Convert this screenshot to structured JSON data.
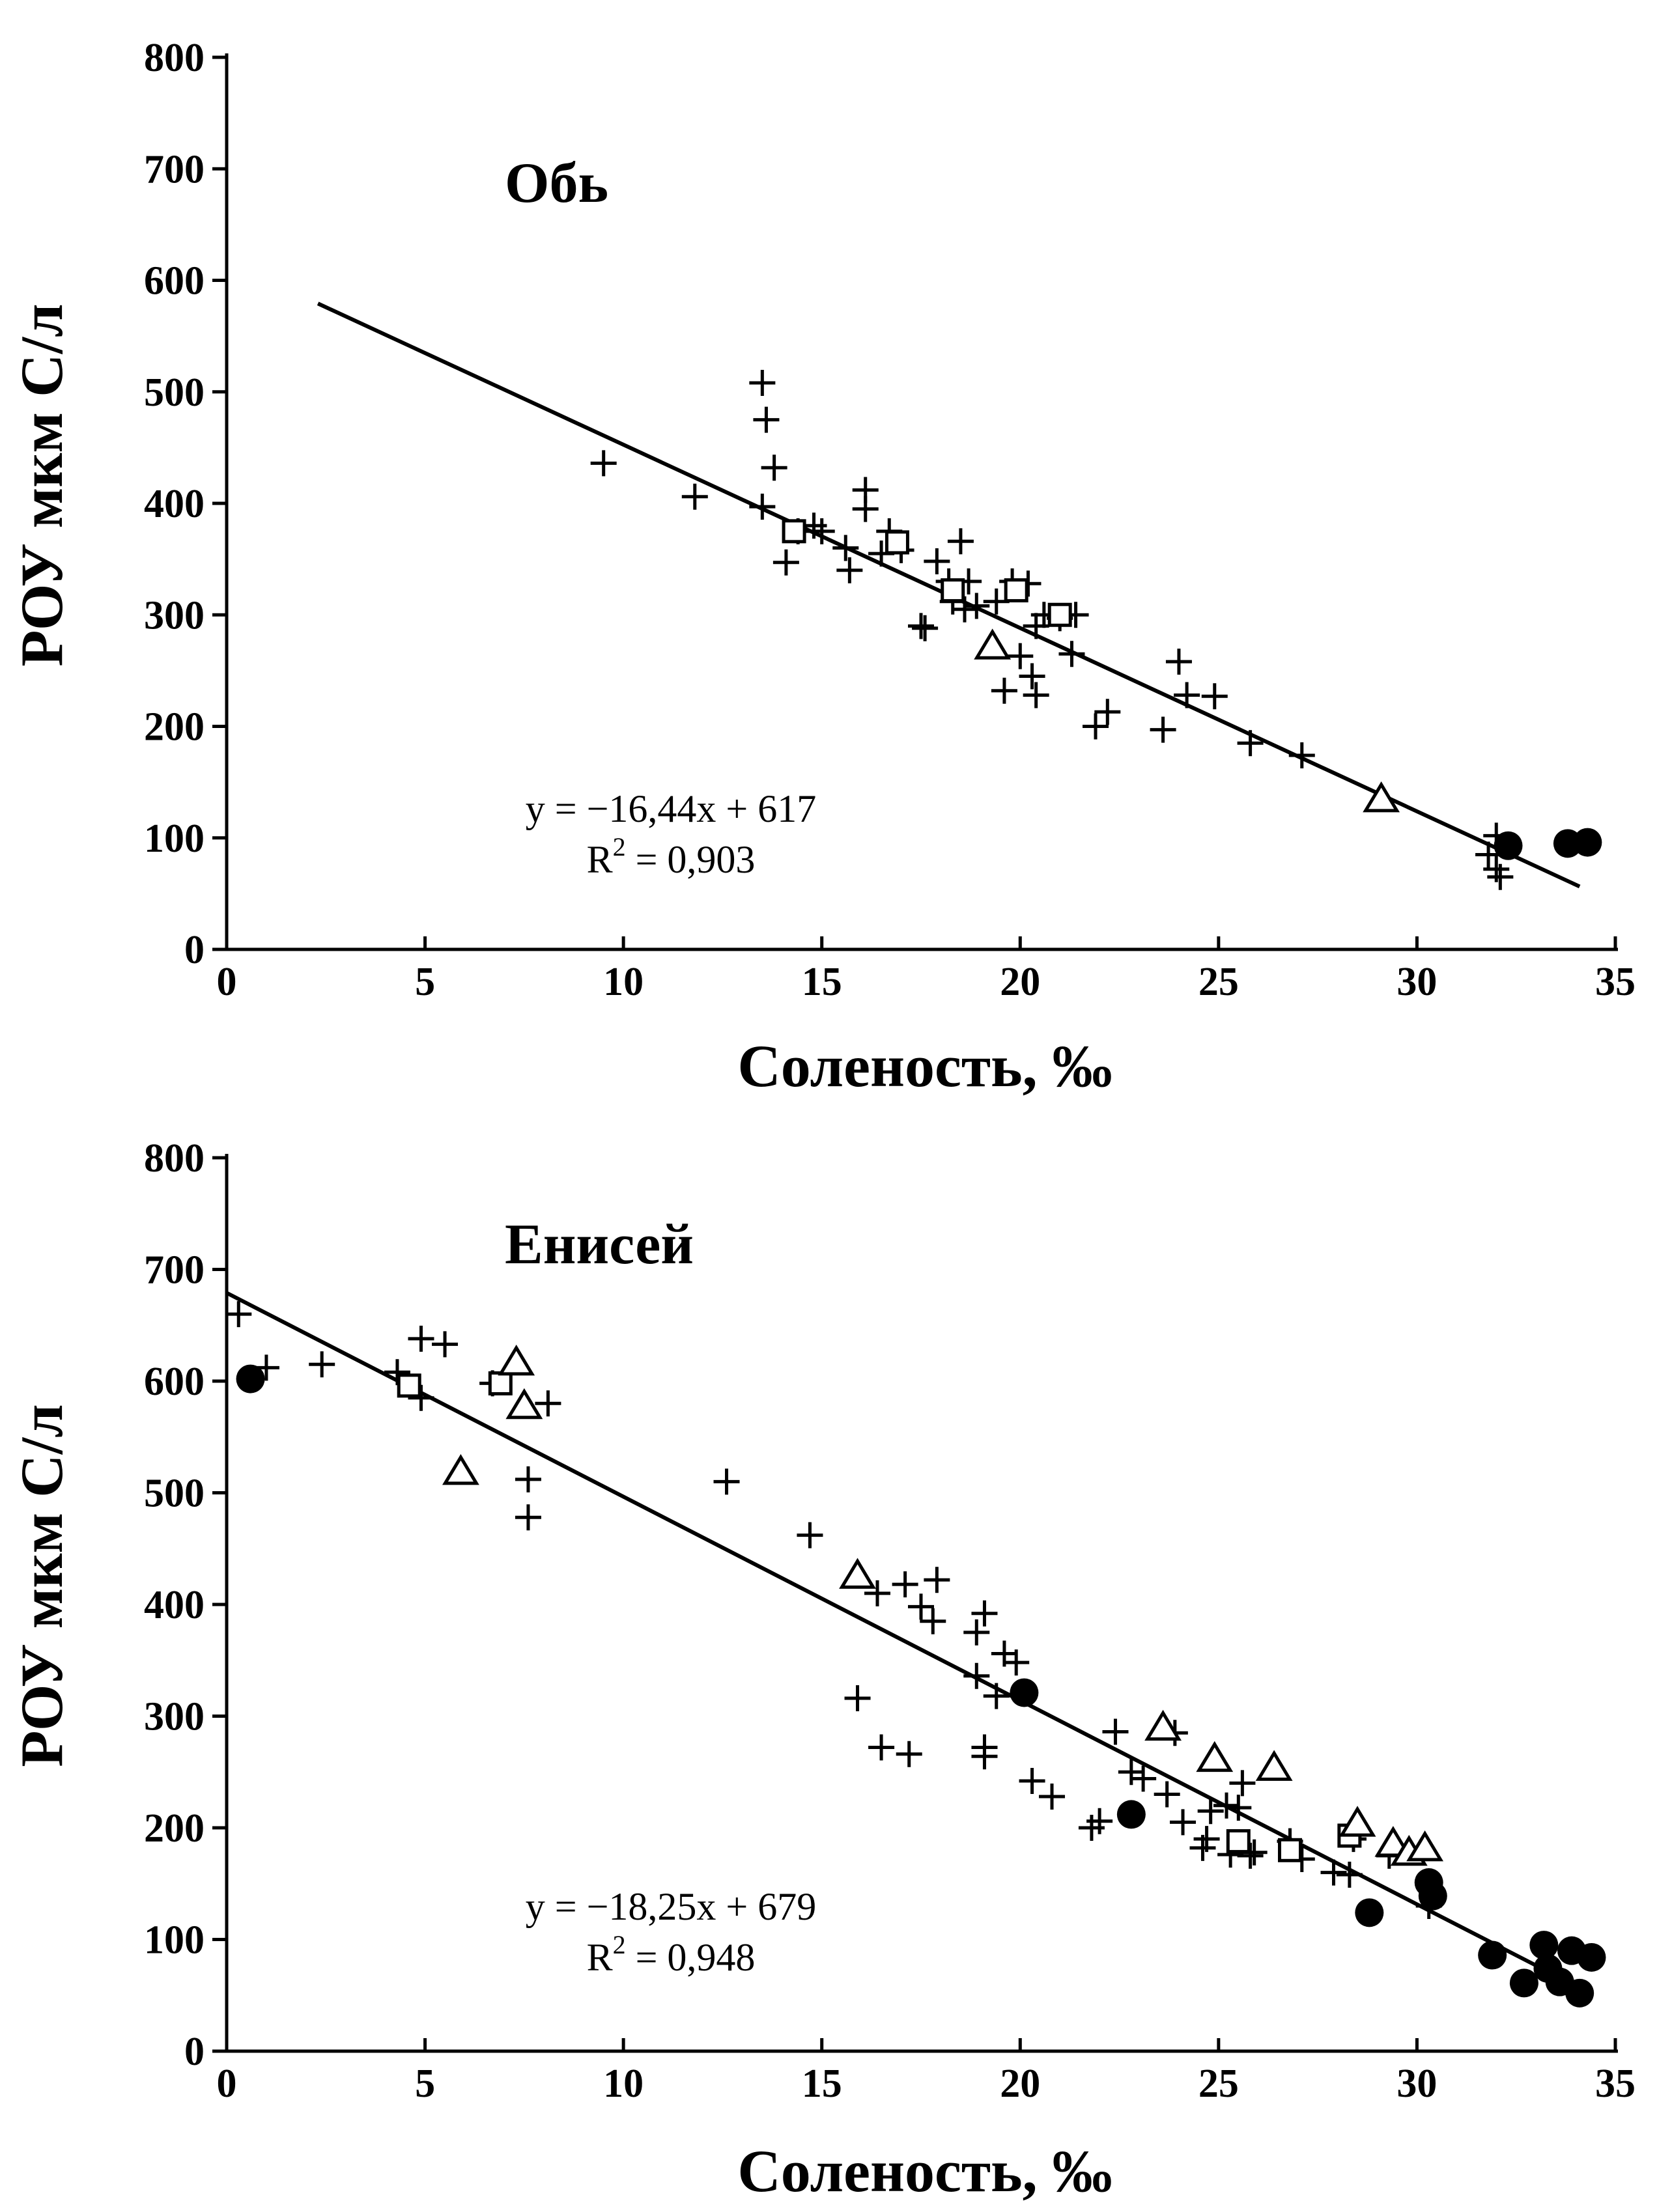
{
  "colors": {
    "ink": "#000000",
    "background": "#ffffff"
  },
  "chart_data": [
    {
      "type": "scatter",
      "title": "Обь",
      "xlabel": "Соленость, ‰",
      "ylabel": "РОУ мкм С/л",
      "xlim": [
        0,
        35
      ],
      "ylim": [
        0,
        800
      ],
      "xticks": [
        0,
        5,
        10,
        15,
        20,
        25,
        30,
        35
      ],
      "yticks": [
        0,
        100,
        200,
        300,
        400,
        500,
        600,
        700,
        800
      ],
      "grid": false,
      "equation": {
        "line1": "y = −16,44x + 617",
        "line2_prefix": "R",
        "line2_sup": "2",
        "line2_suffix": " = 0,903"
      },
      "trendline": {
        "slope": -16.44,
        "intercept": 617,
        "x_range": [
          2.3,
          34.1
        ]
      },
      "series": [
        {
          "marker": "plus",
          "points": [
            [
              9.5,
              436
            ],
            [
              11.8,
              406
            ],
            [
              13.5,
              508
            ],
            [
              13.6,
              475
            ],
            [
              13.8,
              432
            ],
            [
              13.5,
              397
            ],
            [
              14.1,
              347
            ],
            [
              14.4,
              375
            ],
            [
              14.8,
              380
            ],
            [
              15.0,
              375
            ],
            [
              15.6,
              360
            ],
            [
              15.7,
              340
            ],
            [
              16.1,
              412
            ],
            [
              16.1,
              395
            ],
            [
              16.5,
              355
            ],
            [
              16.7,
              375
            ],
            [
              17.0,
              358
            ],
            [
              17.5,
              290
            ],
            [
              17.6,
              288
            ],
            [
              17.9,
              348
            ],
            [
              18.2,
              330
            ],
            [
              18.3,
              312
            ],
            [
              18.5,
              366
            ],
            [
              18.6,
              305
            ],
            [
              18.7,
              330
            ],
            [
              18.9,
              308
            ],
            [
              19.4,
              312
            ],
            [
              19.6,
              232
            ],
            [
              19.8,
              330
            ],
            [
              20.0,
              263
            ],
            [
              20.2,
              328
            ],
            [
              20.3,
              245
            ],
            [
              20.4,
              228
            ],
            [
              20.4,
              290
            ],
            [
              20.6,
              300
            ],
            [
              21.0,
              297
            ],
            [
              21.3,
              265
            ],
            [
              21.4,
              300
            ],
            [
              21.9,
              200
            ],
            [
              22.2,
              213
            ],
            [
              23.6,
              197
            ],
            [
              24.0,
              258
            ],
            [
              24.2,
              228
            ],
            [
              24.9,
              227
            ],
            [
              25.8,
              185
            ],
            [
              27.1,
              174
            ],
            [
              31.8,
              85
            ],
            [
              32.0,
              102
            ],
            [
              32.0,
              72
            ],
            [
              32.1,
              65
            ]
          ]
        },
        {
          "marker": "square",
          "points": [
            [
              14.3,
              375
            ],
            [
              16.9,
              365
            ],
            [
              18.3,
              322
            ],
            [
              19.9,
              322
            ],
            [
              21.0,
              300
            ]
          ]
        },
        {
          "marker": "triangle",
          "points": [
            [
              19.3,
              272
            ],
            [
              29.1,
              135
            ]
          ]
        },
        {
          "marker": "circle",
          "points": [
            [
              32.3,
              93
            ],
            [
              33.8,
              95
            ],
            [
              34.3,
              96
            ]
          ]
        }
      ]
    },
    {
      "type": "scatter",
      "title": "Енисей",
      "xlabel": "Соленость, ‰",
      "ylabel": "РОУ мкм С/л",
      "xlim": [
        0,
        35
      ],
      "ylim": [
        0,
        800
      ],
      "xticks": [
        0,
        5,
        10,
        15,
        20,
        25,
        30,
        35
      ],
      "yticks": [
        0,
        100,
        200,
        300,
        400,
        500,
        600,
        700,
        800
      ],
      "grid": false,
      "equation": {
        "line1": "y = −18,25x + 679",
        "line2_prefix": "R",
        "line2_sup": "2",
        "line2_suffix": " = 0,948"
      },
      "trendline": {
        "slope": -18.25,
        "intercept": 679,
        "x_range": [
          0,
          33.3
        ]
      },
      "series": [
        {
          "marker": "plus",
          "points": [
            [
              0.3,
              660
            ],
            [
              1.0,
              612
            ],
            [
              2.4,
              615
            ],
            [
              4.3,
              608
            ],
            [
              4.9,
              638
            ],
            [
              4.9,
              585
            ],
            [
              5.5,
              633
            ],
            [
              6.7,
              598
            ],
            [
              7.6,
              512
            ],
            [
              7.6,
              478
            ],
            [
              8.1,
              580
            ],
            [
              12.6,
              510
            ],
            [
              14.7,
              462
            ],
            [
              15.9,
              316
            ],
            [
              16.4,
              410
            ],
            [
              16.5,
              272
            ],
            [
              17.1,
              418
            ],
            [
              17.2,
              266
            ],
            [
              17.5,
              398
            ],
            [
              17.8,
              385
            ],
            [
              17.9,
              422
            ],
            [
              18.9,
              375
            ],
            [
              18.9,
              336
            ],
            [
              19.1,
              392
            ],
            [
              19.1,
              272
            ],
            [
              19.1,
              264
            ],
            [
              19.4,
              318
            ],
            [
              19.6,
              356
            ],
            [
              19.9,
              348
            ],
            [
              20.3,
              242
            ],
            [
              20.8,
              228
            ],
            [
              21.8,
              200
            ],
            [
              22.0,
              206
            ],
            [
              22.4,
              286
            ],
            [
              22.8,
              250
            ],
            [
              23.1,
              244
            ],
            [
              23.7,
              230
            ],
            [
              23.9,
              285
            ],
            [
              24.1,
              205
            ],
            [
              24.6,
              182
            ],
            [
              24.7,
              190
            ],
            [
              24.8,
              215
            ],
            [
              25.2,
              220
            ],
            [
              25.3,
              176
            ],
            [
              25.5,
              218
            ],
            [
              25.6,
              240
            ],
            [
              25.8,
              175
            ],
            [
              25.9,
              178
            ],
            [
              26.8,
              188
            ],
            [
              27.1,
              172
            ],
            [
              27.9,
              160
            ],
            [
              28.3,
              158
            ],
            [
              28.4,
              190
            ],
            [
              29.3,
              175
            ],
            [
              30.1,
              178
            ],
            [
              30.3,
              130
            ]
          ]
        },
        {
          "marker": "square",
          "points": [
            [
              4.6,
              596
            ],
            [
              6.9,
              598
            ],
            [
              25.5,
              188
            ],
            [
              26.8,
              180
            ],
            [
              28.3,
              193
            ]
          ]
        },
        {
          "marker": "triangle",
          "points": [
            [
              5.9,
              519
            ],
            [
              7.3,
              617
            ],
            [
              7.5,
              578
            ],
            [
              15.9,
              426
            ],
            [
              23.6,
              290
            ],
            [
              24.9,
              262
            ],
            [
              26.4,
              254
            ],
            [
              28.5,
              204
            ],
            [
              29.4,
              186
            ],
            [
              29.8,
              178
            ],
            [
              30.2,
              182
            ]
          ]
        },
        {
          "marker": "circle",
          "points": [
            [
              0.6,
              602
            ],
            [
              20.1,
              321
            ],
            [
              22.8,
              212
            ],
            [
              28.8,
              124
            ],
            [
              30.3,
              151
            ],
            [
              30.4,
              139
            ],
            [
              31.9,
              86
            ],
            [
              32.7,
              61
            ],
            [
              33.2,
              95
            ],
            [
              33.3,
              74
            ],
            [
              33.6,
              62
            ],
            [
              33.9,
              90
            ],
            [
              34.1,
              52
            ],
            [
              34.4,
              84
            ]
          ]
        }
      ]
    }
  ]
}
